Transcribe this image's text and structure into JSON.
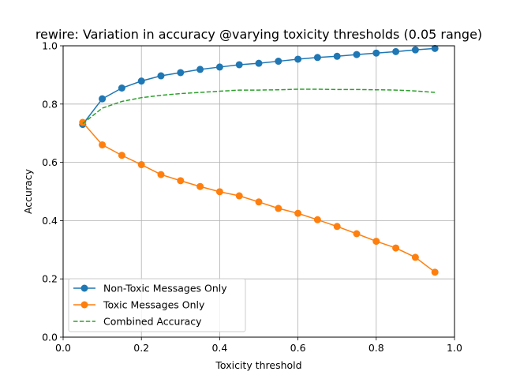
{
  "chart_data": {
    "type": "line",
    "title": "rewire: Variation in accuracy @varying toxicity thresholds (0.05 range)",
    "xlabel": "Toxicity threshold",
    "ylabel": "Accuracy",
    "xlim": [
      0.0,
      1.0
    ],
    "ylim": [
      0.0,
      1.0
    ],
    "xticks": [
      "0.0",
      "0.2",
      "0.4",
      "0.6",
      "0.8",
      "1.0"
    ],
    "yticks": [
      "0.0",
      "0.2",
      "0.4",
      "0.6",
      "0.8",
      "1.0"
    ],
    "grid": true,
    "legend_position": "lower-left",
    "x": [
      0.05,
      0.1,
      0.15,
      0.2,
      0.25,
      0.3,
      0.35,
      0.4,
      0.45,
      0.5,
      0.55,
      0.6,
      0.65,
      0.7,
      0.75,
      0.8,
      0.85,
      0.9,
      0.95
    ],
    "series": [
      {
        "name": "Non-Toxic Messages Only",
        "color": "#1f77b4",
        "style": "solid-marker",
        "values": [
          0.73,
          0.818,
          0.855,
          0.879,
          0.897,
          0.908,
          0.919,
          0.927,
          0.935,
          0.94,
          0.947,
          0.954,
          0.96,
          0.964,
          0.97,
          0.975,
          0.98,
          0.986,
          0.991
        ]
      },
      {
        "name": "Toxic Messages Only",
        "color": "#ff7f0e",
        "style": "solid-marker",
        "values": [
          0.737,
          0.66,
          0.624,
          0.592,
          0.558,
          0.537,
          0.517,
          0.499,
          0.485,
          0.464,
          0.442,
          0.425,
          0.403,
          0.38,
          0.355,
          0.329,
          0.306,
          0.274,
          0.223
        ]
      },
      {
        "name": "Combined Accuracy",
        "color": "#2ca02c",
        "style": "dashed",
        "values": [
          0.733,
          0.786,
          0.809,
          0.822,
          0.83,
          0.836,
          0.84,
          0.844,
          0.848,
          0.848,
          0.849,
          0.851,
          0.851,
          0.85,
          0.85,
          0.849,
          0.848,
          0.845,
          0.84
        ]
      }
    ]
  }
}
